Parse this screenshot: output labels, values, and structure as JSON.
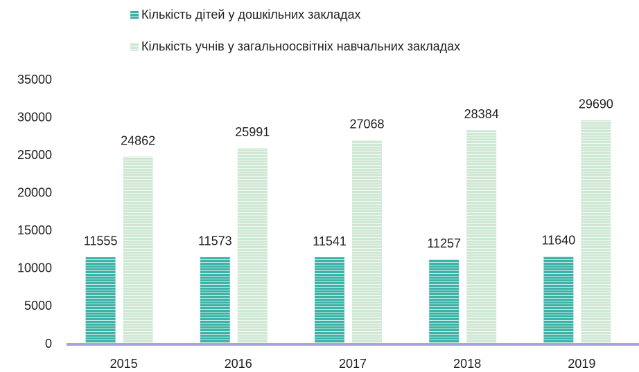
{
  "chart_data": {
    "type": "bar",
    "categories": [
      "2015",
      "2016",
      "2017",
      "2018",
      "2019"
    ],
    "series": [
      {
        "name": "Кількість дітей у дошкільних закладах",
        "color": "#3bb3a6",
        "values": [
          11555,
          11573,
          11541,
          11257,
          11640
        ]
      },
      {
        "name": "Кількість учнів у загальноосвітніх навчальних закладах",
        "color": "#cfe8d4",
        "values": [
          24862,
          25991,
          27068,
          28384,
          29690
        ]
      }
    ],
    "ylim": [
      0,
      35000
    ],
    "yticks": [
      0,
      5000,
      10000,
      15000,
      20000,
      25000,
      30000,
      35000
    ],
    "grid": false,
    "legend": "top"
  }
}
